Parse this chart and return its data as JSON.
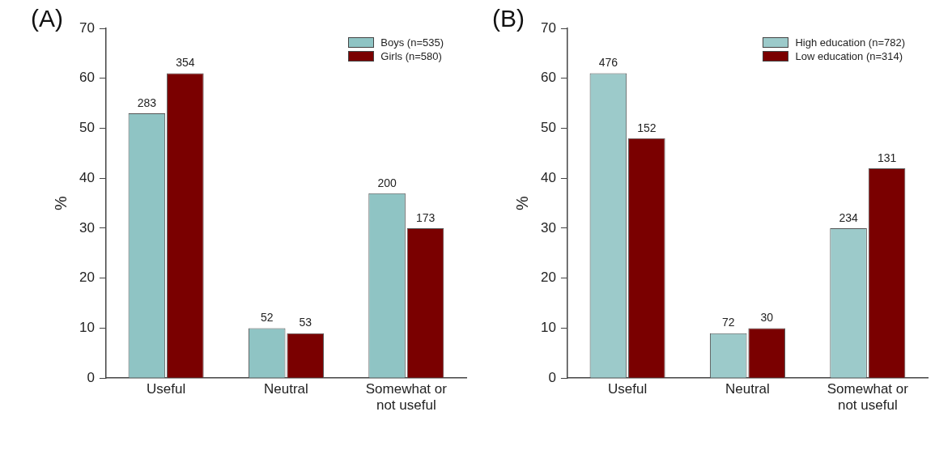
{
  "chart_data": [
    {
      "type": "bar",
      "title": "(A)",
      "ylabel": "%",
      "categories": [
        "Useful",
        "Neutral",
        "Somewhat or not useful"
      ],
      "series": [
        {
          "name": "Boys (n=535)",
          "color": "#8fc4c4",
          "values": [
            53,
            10,
            37
          ]
        },
        {
          "name": "Girls (n=580)",
          "color": "#7a0000",
          "values": [
            61,
            9,
            30
          ]
        }
      ],
      "annotations": [
        {
          "text": "283",
          "x": "Useful",
          "y": 53
        },
        {
          "text": "52",
          "x": "Neutral",
          "y": 10
        },
        {
          "text": "200",
          "x": "Somewhat or not useful",
          "y": 37
        },
        {
          "text": "354",
          "x": "Useful",
          "y": 61
        },
        {
          "text": "53",
          "x": "Neutral",
          "y": 9
        },
        {
          "text": "173",
          "x": "Somewhat or not useful",
          "y": 30
        }
      ],
      "ylim": [
        0,
        70
      ],
      "yticks": [
        0,
        10,
        20,
        30,
        40,
        50,
        60,
        70
      ],
      "grid": false,
      "legend": "top right"
    },
    {
      "type": "bar",
      "title": "(B)",
      "ylabel": "%",
      "categories": [
        "Useful",
        "Neutral",
        "Somewhat or not useful"
      ],
      "series": [
        {
          "name": "High education (n=782)",
          "color": "#9ccaca",
          "values": [
            61,
            9,
            30
          ]
        },
        {
          "name": "Low education (n=314)",
          "color": "#7a0000",
          "values": [
            48,
            10,
            42
          ]
        }
      ],
      "annotations": [
        {
          "text": "476",
          "x": "Useful",
          "y": 61
        },
        {
          "text": "72",
          "x": "Neutral",
          "y": 9
        },
        {
          "text": "234",
          "x": "Somewhat or not useful",
          "y": 30
        },
        {
          "text": "152",
          "x": "Useful",
          "y": 48
        },
        {
          "text": "30",
          "x": "Neutral",
          "y": 10
        },
        {
          "text": "131",
          "x": "Somewhat or not useful",
          "y": 42
        }
      ],
      "ylim": [
        0,
        70
      ],
      "yticks": [
        0,
        10,
        20,
        30,
        40,
        50,
        60,
        70
      ],
      "grid": false,
      "legend": "top right"
    }
  ]
}
